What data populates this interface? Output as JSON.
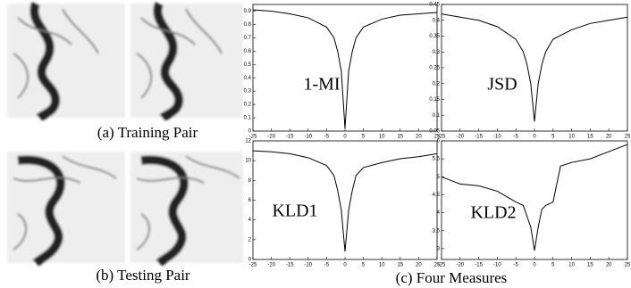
{
  "captions": {
    "a": "(a) Training Pair",
    "b": "(b) Testing Pair",
    "c": "(c) Four Measures"
  },
  "chart_data": [
    {
      "type": "line",
      "title": "1-MI",
      "color": "#000000",
      "x": [
        -25,
        -20,
        -15,
        -10,
        -5,
        -3,
        -2,
        -1,
        0,
        1,
        2,
        3,
        5,
        10,
        15,
        20,
        25
      ],
      "values": [
        0.91,
        0.9,
        0.88,
        0.85,
        0.78,
        0.7,
        0.6,
        0.45,
        0.02,
        0.45,
        0.6,
        0.7,
        0.78,
        0.84,
        0.87,
        0.88,
        0.89
      ],
      "xlim": [
        -25,
        25
      ],
      "xticks": [
        -25,
        -20,
        -15,
        -10,
        -5,
        0,
        5,
        10,
        15,
        20,
        25
      ],
      "ylim": [
        0,
        0.95
      ],
      "yticks": [
        0,
        0.1,
        0.2,
        0.3,
        0.4,
        0.5,
        0.6,
        0.7,
        0.8,
        0.9
      ]
    },
    {
      "type": "line",
      "title": "JSD",
      "color": "#000000",
      "x": [
        -25,
        -20,
        -15,
        -10,
        -5,
        -3,
        -2,
        -1,
        0,
        1,
        2,
        3,
        5,
        10,
        15,
        20,
        25
      ],
      "values": [
        0.42,
        0.41,
        0.4,
        0.38,
        0.34,
        0.3,
        0.26,
        0.2,
        0.08,
        0.2,
        0.26,
        0.3,
        0.34,
        0.37,
        0.39,
        0.4,
        0.41
      ],
      "xlim": [
        -25,
        25
      ],
      "xticks": [
        -25,
        -20,
        -15,
        -10,
        -5,
        0,
        5,
        10,
        15,
        20,
        25
      ],
      "ylim": [
        0.05,
        0.45
      ],
      "yticks": [
        0.05,
        0.1,
        0.15,
        0.2,
        0.25,
        0.3,
        0.35,
        0.4,
        0.45
      ]
    },
    {
      "type": "line",
      "title": "KLD1",
      "color": "#000000",
      "x": [
        -25,
        -20,
        -15,
        -10,
        -5,
        -3,
        -2,
        -1,
        0,
        1,
        2,
        3,
        5,
        10,
        15,
        20,
        25
      ],
      "values": [
        11,
        10.9,
        10.7,
        10.3,
        9.5,
        8.5,
        7,
        5,
        0.8,
        5,
        7,
        8.5,
        9.3,
        9.8,
        10.2,
        10.4,
        10.7
      ],
      "xlim": [
        -25,
        25
      ],
      "xticks": [
        -25,
        -20,
        -15,
        -10,
        -5,
        0,
        5,
        10,
        15,
        20,
        25
      ],
      "ylim": [
        0,
        12
      ],
      "yticks": [
        0,
        2,
        4,
        6,
        8,
        10,
        12
      ]
    },
    {
      "type": "line",
      "title": "KLD2",
      "color": "#000000",
      "x": [
        -25,
        -20,
        -15,
        -10,
        -5,
        -3,
        -2,
        -1,
        0,
        1,
        2,
        3,
        5,
        7,
        10,
        15,
        20,
        25
      ],
      "values": [
        5,
        4.8,
        4.75,
        4.6,
        4.3,
        4.2,
        3.9,
        3.6,
        2.95,
        3.6,
        4.1,
        4.2,
        4.3,
        5.3,
        5.4,
        5.5,
        5.7,
        5.9
      ],
      "xlim": [
        -25,
        25
      ],
      "xticks": [
        -25,
        -20,
        -15,
        -10,
        -5,
        0,
        5,
        10,
        15,
        20,
        25
      ],
      "ylim": [
        2.7,
        6
      ],
      "yticks": [
        3,
        3.5,
        4,
        4.5,
        5,
        5.5,
        6
      ]
    }
  ]
}
